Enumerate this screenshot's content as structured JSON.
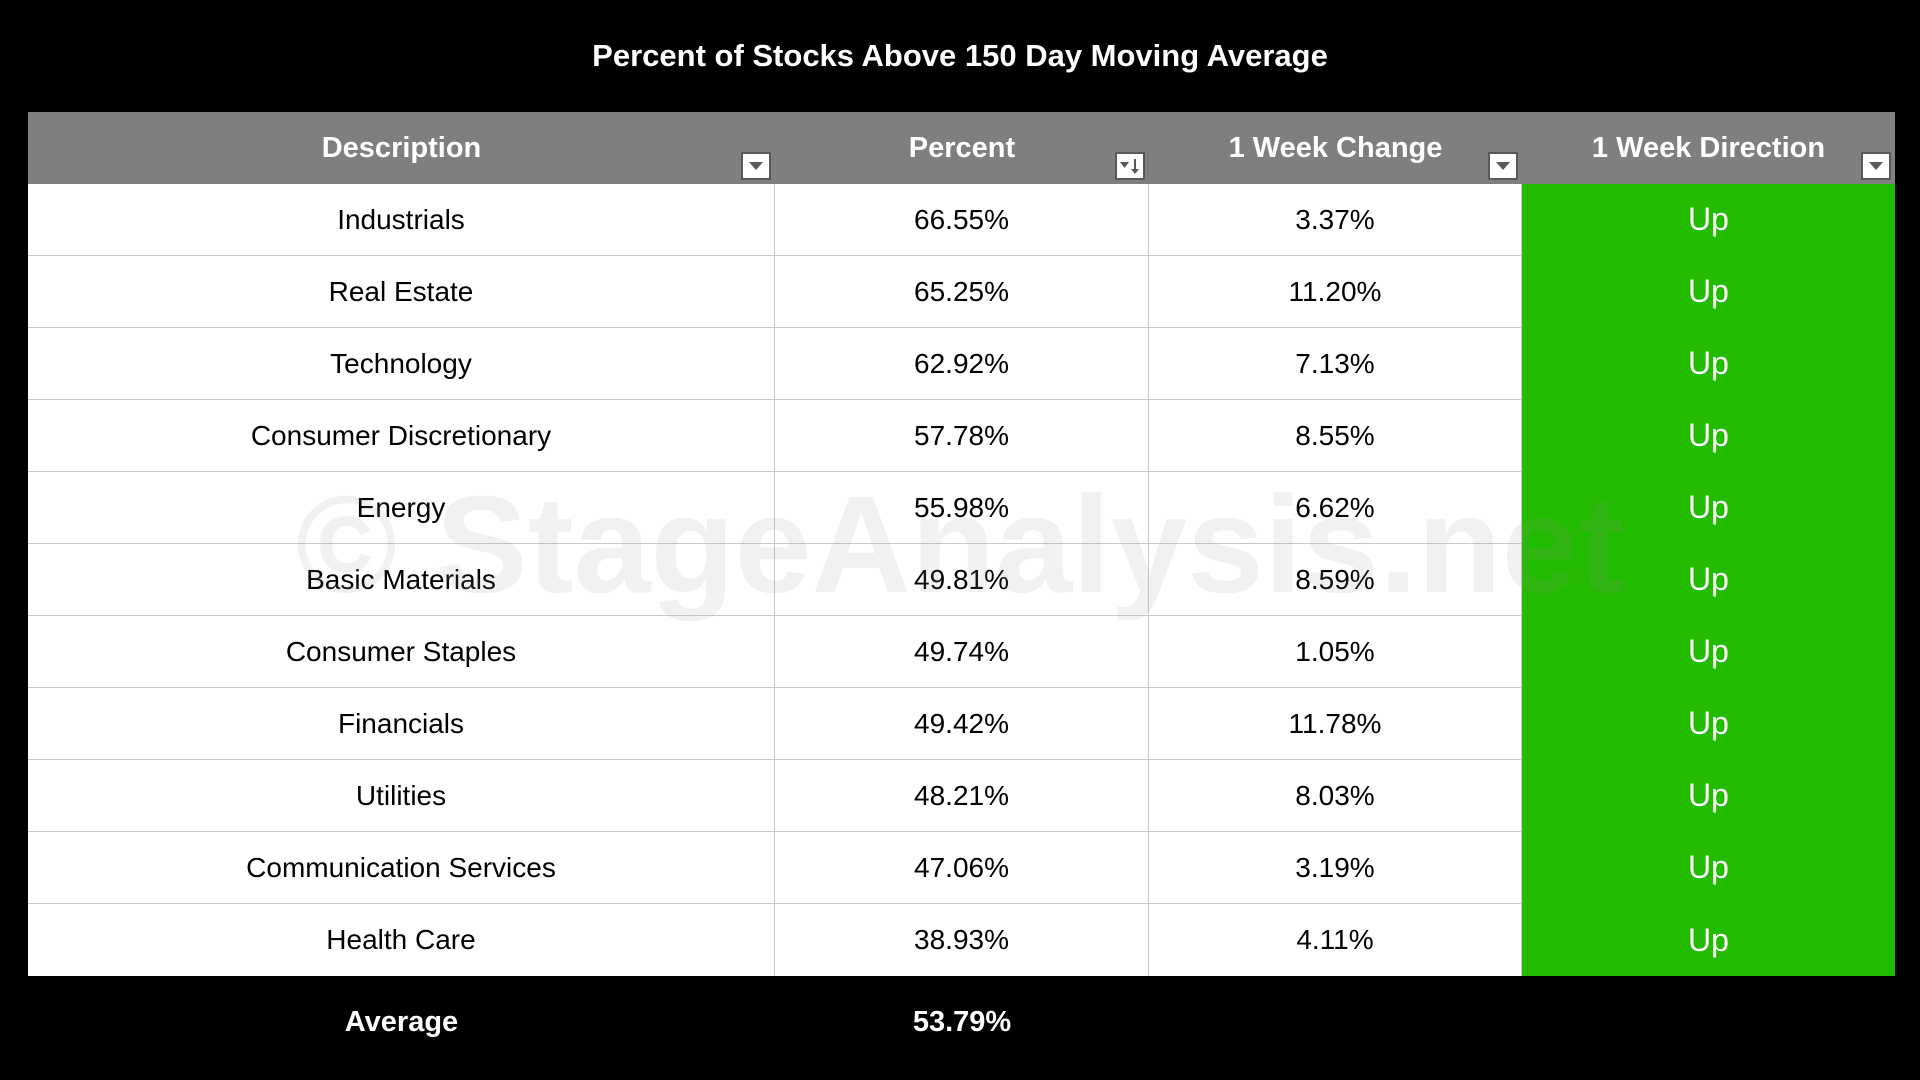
{
  "title": "Percent of Stocks Above 150 Day Moving Average",
  "watermark": "© StageAnalysis.net",
  "colors": {
    "background": "#000000",
    "header_bg": "#7f7f7f",
    "up_green": "#22bb00"
  },
  "icons": {
    "filter": "dropdown-arrow-icon",
    "sort": "sort-descending-icon"
  },
  "chart_data": {
    "type": "table",
    "columns": [
      "Description",
      "Percent",
      "1 Week Change",
      "1 Week Direction"
    ],
    "rows": [
      [
        "Industrials",
        "66.55%",
        "3.37%",
        "Up"
      ],
      [
        "Real Estate",
        "65.25%",
        "11.20%",
        "Up"
      ],
      [
        "Technology",
        "62.92%",
        "7.13%",
        "Up"
      ],
      [
        "Consumer Discretionary",
        "57.78%",
        "8.55%",
        "Up"
      ],
      [
        "Energy",
        "55.98%",
        "6.62%",
        "Up"
      ],
      [
        "Basic Materials",
        "49.81%",
        "8.59%",
        "Up"
      ],
      [
        "Consumer Staples",
        "49.74%",
        "1.05%",
        "Up"
      ],
      [
        "Financials",
        "49.42%",
        "11.78%",
        "Up"
      ],
      [
        "Utilities",
        "48.21%",
        "8.03%",
        "Up"
      ],
      [
        "Communication Services",
        "47.06%",
        "3.19%",
        "Up"
      ],
      [
        "Health Care",
        "38.93%",
        "4.11%",
        "Up"
      ]
    ],
    "footer": [
      "Average",
      "53.79%",
      "",
      ""
    ]
  }
}
